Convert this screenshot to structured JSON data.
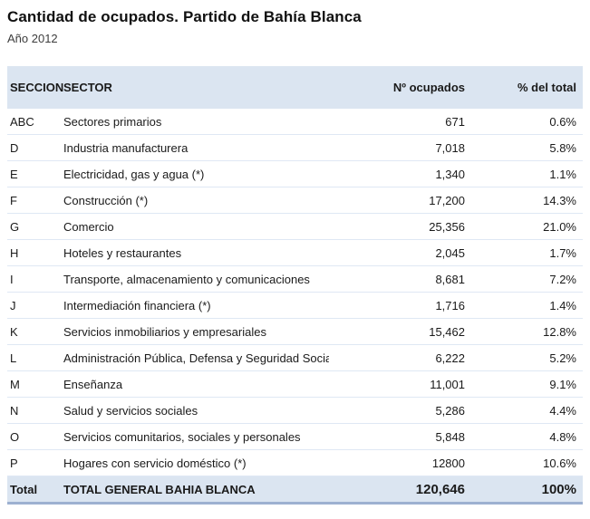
{
  "page": {
    "title": "Cantidad de ocupados. Partido de Bahía Blanca",
    "subtitle": "Año 2012"
  },
  "table": {
    "columns": {
      "seccion": "SECCION",
      "sector": "SECTOR",
      "ocupados": "Nº ocupados",
      "pct": "% del total"
    },
    "rows": [
      {
        "seccion": "ABC",
        "sector": "Sectores primarios",
        "ocupados": "671",
        "pct": "0.6%"
      },
      {
        "seccion": "D",
        "sector": "Industria manufacturera",
        "ocupados": "7,018",
        "pct": "5.8%"
      },
      {
        "seccion": "E",
        "sector": "Electricidad, gas y agua (*)",
        "ocupados": "1,340",
        "pct": "1.1%"
      },
      {
        "seccion": "F",
        "sector": "Construcción (*)",
        "ocupados": "17,200",
        "pct": "14.3%"
      },
      {
        "seccion": "G",
        "sector": "Comercio",
        "ocupados": "25,356",
        "pct": "21.0%"
      },
      {
        "seccion": "H",
        "sector": "Hoteles y restaurantes",
        "ocupados": "2,045",
        "pct": "1.7%"
      },
      {
        "seccion": "I",
        "sector": "Transporte, almacenamiento y comunicaciones",
        "ocupados": "8,681",
        "pct": "7.2%"
      },
      {
        "seccion": "J",
        "sector": "Intermediación financiera (*)",
        "ocupados": "1,716",
        "pct": "1.4%"
      },
      {
        "seccion": "K",
        "sector": "Servicios inmobiliarios y empresariales",
        "ocupados": "15,462",
        "pct": "12.8%"
      },
      {
        "seccion": "L",
        "sector": "Administración Pública, Defensa y Seguridad Social",
        "ocupados": "6,222",
        "pct": "5.2%"
      },
      {
        "seccion": "M",
        "sector": "Enseñanza",
        "ocupados": "11,001",
        "pct": "9.1%"
      },
      {
        "seccion": "N",
        "sector": "Salud y servicios sociales",
        "ocupados": "5,286",
        "pct": "4.4%"
      },
      {
        "seccion": "O",
        "sector": "Servicios comunitarios, sociales y personales",
        "ocupados": "5,848",
        "pct": "4.8%"
      },
      {
        "seccion": "P",
        "sector": "Hogares con servicio doméstico (*)",
        "ocupados": "12800",
        "pct": "10.6%"
      }
    ],
    "total": {
      "seccion": "Total",
      "sector": "TOTAL GENERAL BAHIA BLANCA",
      "ocupados": "120,646",
      "pct": "100%"
    }
  },
  "colors": {
    "header_fill": "#dbe5f1",
    "total_fill": "#dbe5f1",
    "row_divider": "#dfe8f4",
    "table_bottom_border": "#9db1d1",
    "text": "#1a1a1a"
  }
}
